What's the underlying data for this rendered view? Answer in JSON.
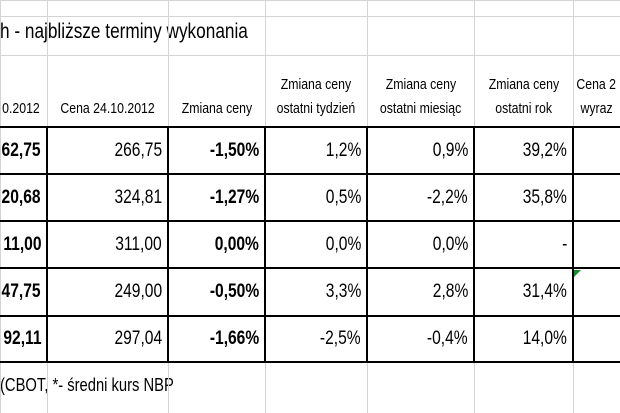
{
  "title": "h - najbliższe terminy wykonania",
  "table": {
    "header": [
      [
        "0.2012"
      ],
      [
        "Cena 24.10.2012"
      ],
      [
        "Zmiana ceny"
      ],
      [
        "Zmiana ceny",
        "ostatni tydzień"
      ],
      [
        "Zmiana ceny",
        "ostatni miesiąc"
      ],
      [
        "Zmiana ceny",
        "ostatni rok"
      ],
      [
        "Cena 2",
        "wyraz"
      ]
    ],
    "rows": [
      [
        "62,75",
        "266,75",
        "-1,50%",
        "1,2%",
        "0,9%",
        "39,2%"
      ],
      [
        "20,68",
        "324,81",
        "-1,27%",
        "0,5%",
        "-2,2%",
        "35,8%"
      ],
      [
        "11,00",
        "311,00",
        "0,00%",
        "0,0%",
        "0,0%",
        "-"
      ],
      [
        "47,75",
        "249,00",
        "-0,50%",
        "3,3%",
        "2,8%",
        "31,4%"
      ],
      [
        "92,11",
        "297,04",
        "-1,66%",
        "-2,5%",
        "-0,4%",
        "14,0%"
      ]
    ]
  },
  "footer": "(CBOT, *- średni kurs NBP"
}
